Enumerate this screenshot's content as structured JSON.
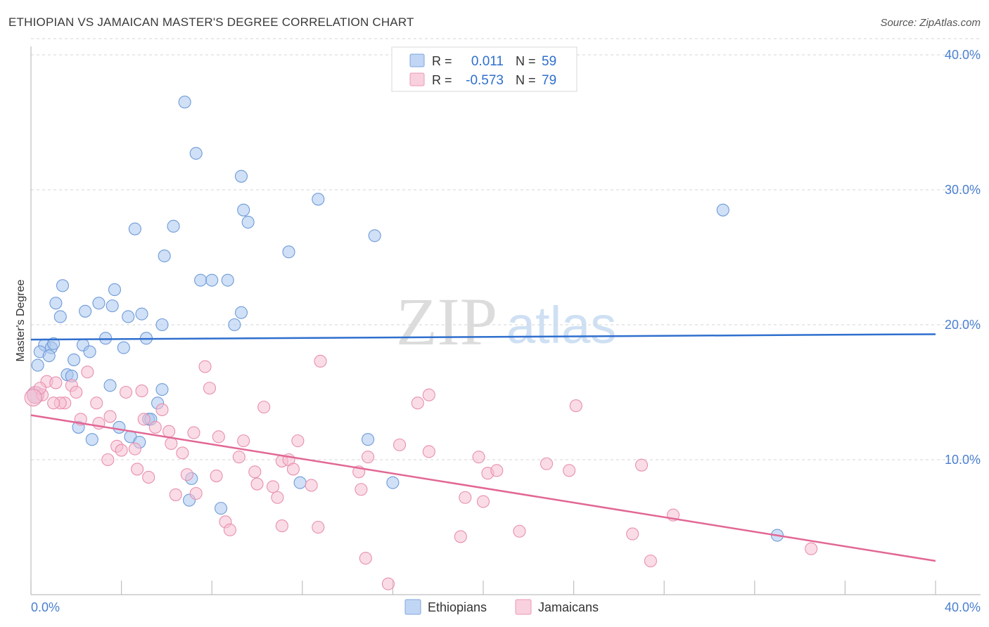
{
  "header": {
    "title": "ETHIOPIAN VS JAMAICAN MASTER'S DEGREE CORRELATION CHART",
    "source": "Source: ZipAtlas.com"
  },
  "watermark": {
    "zip": "ZIP",
    "atlas": "atlas"
  },
  "chart_data": {
    "type": "scatter",
    "title": "ETHIOPIAN VS JAMAICAN MASTER'S DEGREE CORRELATION CHART",
    "xlabel": "",
    "ylabel": "Master's Degree",
    "xlim": [
      0,
      40
    ],
    "ylim": [
      0,
      40
    ],
    "x_tick_labels": [
      "0.0%",
      "40.0%"
    ],
    "y_ticks": [
      10,
      20,
      30,
      40
    ],
    "y_tick_labels": [
      "10.0%",
      "20.0%",
      "30.0%",
      "40.0%"
    ],
    "legend_position": "top-center",
    "legend": [
      {
        "r_label": "R =",
        "r_value": "0.011",
        "n_label": "N =",
        "n_value": "59"
      },
      {
        "r_label": "R =",
        "r_value": "-0.573",
        "n_label": "N =",
        "n_value": "79"
      }
    ],
    "series": [
      {
        "name": "Ethiopians",
        "color": "#a9c6ef",
        "stroke": "#6f9bd9",
        "trend_color": "#2f6fce",
        "trend": {
          "x": [
            0,
            40
          ],
          "y": [
            18.9,
            19.3
          ]
        },
        "points": [
          [
            6.8,
            36.5
          ],
          [
            7.3,
            32.7
          ],
          [
            9.3,
            31.0
          ],
          [
            12.7,
            29.3
          ],
          [
            9.4,
            28.5
          ],
          [
            9.6,
            27.6
          ],
          [
            4.6,
            27.1
          ],
          [
            6.3,
            27.3
          ],
          [
            5.9,
            25.1
          ],
          [
            11.4,
            25.4
          ],
          [
            15.2,
            26.6
          ],
          [
            30.6,
            28.5
          ],
          [
            7.5,
            23.3
          ],
          [
            8.0,
            23.3
          ],
          [
            8.7,
            23.3
          ],
          [
            1.4,
            22.9
          ],
          [
            3.7,
            22.6
          ],
          [
            1.1,
            21.6
          ],
          [
            3.0,
            21.6
          ],
          [
            3.6,
            21.4
          ],
          [
            2.4,
            21.0
          ],
          [
            9.3,
            20.9
          ],
          [
            4.3,
            20.6
          ],
          [
            4.9,
            20.8
          ],
          [
            1.3,
            20.6
          ],
          [
            5.8,
            20.0
          ],
          [
            9.0,
            20.0
          ],
          [
            3.3,
            19.0
          ],
          [
            5.1,
            19.0
          ],
          [
            0.6,
            18.5
          ],
          [
            0.9,
            18.3
          ],
          [
            1.0,
            18.6
          ],
          [
            2.3,
            18.5
          ],
          [
            4.1,
            18.3
          ],
          [
            0.4,
            18.0
          ],
          [
            0.8,
            17.7
          ],
          [
            2.6,
            18.0
          ],
          [
            0.3,
            17.0
          ],
          [
            1.9,
            17.4
          ],
          [
            1.6,
            16.3
          ],
          [
            1.8,
            16.2
          ],
          [
            3.5,
            15.5
          ],
          [
            5.8,
            15.2
          ],
          [
            0.2,
            14.8
          ],
          [
            5.6,
            14.2
          ],
          [
            5.2,
            13.0
          ],
          [
            5.3,
            13.0
          ],
          [
            2.1,
            12.4
          ],
          [
            3.9,
            12.4
          ],
          [
            4.4,
            11.7
          ],
          [
            2.7,
            11.5
          ],
          [
            4.8,
            11.3
          ],
          [
            14.9,
            11.5
          ],
          [
            11.9,
            8.3
          ],
          [
            16.0,
            8.3
          ],
          [
            7.1,
            8.6
          ],
          [
            7.0,
            7.0
          ],
          [
            8.4,
            6.4
          ],
          [
            33.0,
            4.4
          ]
        ]
      },
      {
        "name": "Jamaicans",
        "color": "#f6bfd1",
        "stroke": "#e88fae",
        "trend_color": "#e26795",
        "trend": {
          "x": [
            0,
            40
          ],
          "y": [
            13.3,
            2.5
          ]
        },
        "points": [
          [
            0.2,
            14.8
          ],
          [
            0.5,
            14.8
          ],
          [
            0.7,
            15.8
          ],
          [
            1.5,
            14.2
          ],
          [
            1.8,
            15.5
          ],
          [
            2.5,
            16.5
          ],
          [
            2.0,
            15.0
          ],
          [
            1.3,
            14.2
          ],
          [
            1.0,
            14.2
          ],
          [
            2.9,
            14.2
          ],
          [
            4.2,
            15.0
          ],
          [
            5.8,
            13.7
          ],
          [
            7.7,
            16.9
          ],
          [
            7.9,
            15.3
          ],
          [
            12.8,
            17.3
          ],
          [
            17.6,
            14.8
          ],
          [
            17.1,
            14.2
          ],
          [
            24.1,
            14.0
          ],
          [
            10.3,
            13.9
          ],
          [
            2.2,
            13.0
          ],
          [
            3.5,
            13.2
          ],
          [
            3.0,
            12.7
          ],
          [
            5.0,
            13.0
          ],
          [
            5.5,
            12.4
          ],
          [
            6.1,
            12.1
          ],
          [
            7.2,
            12.0
          ],
          [
            8.3,
            11.7
          ],
          [
            9.4,
            11.4
          ],
          [
            11.8,
            11.4
          ],
          [
            3.8,
            11.0
          ],
          [
            4.0,
            10.7
          ],
          [
            4.6,
            10.8
          ],
          [
            6.2,
            11.2
          ],
          [
            6.7,
            10.5
          ],
          [
            16.3,
            11.1
          ],
          [
            17.6,
            10.6
          ],
          [
            3.4,
            10.0
          ],
          [
            9.2,
            10.2
          ],
          [
            11.1,
            9.9
          ],
          [
            11.4,
            10.0
          ],
          [
            14.9,
            10.2
          ],
          [
            19.8,
            10.2
          ],
          [
            22.8,
            9.7
          ],
          [
            27.0,
            9.6
          ],
          [
            4.7,
            9.3
          ],
          [
            9.9,
            9.1
          ],
          [
            11.6,
            9.3
          ],
          [
            14.5,
            9.1
          ],
          [
            20.2,
            9.0
          ],
          [
            20.6,
            9.2
          ],
          [
            23.8,
            9.2
          ],
          [
            5.2,
            8.7
          ],
          [
            6.9,
            8.9
          ],
          [
            8.2,
            8.8
          ],
          [
            10.0,
            8.2
          ],
          [
            10.7,
            8.0
          ],
          [
            12.4,
            8.1
          ],
          [
            14.6,
            7.8
          ],
          [
            6.4,
            7.4
          ],
          [
            7.3,
            7.5
          ],
          [
            10.9,
            7.2
          ],
          [
            19.2,
            7.2
          ],
          [
            20.0,
            6.9
          ],
          [
            28.4,
            5.9
          ],
          [
            8.6,
            5.4
          ],
          [
            8.8,
            4.8
          ],
          [
            11.1,
            5.1
          ],
          [
            12.7,
            5.0
          ],
          [
            21.6,
            4.7
          ],
          [
            19.0,
            4.3
          ],
          [
            26.6,
            4.5
          ],
          [
            34.5,
            3.4
          ],
          [
            14.8,
            2.7
          ],
          [
            27.4,
            2.5
          ],
          [
            15.8,
            0.8
          ],
          [
            4.9,
            15.1
          ],
          [
            1.1,
            15.7
          ],
          [
            0.4,
            15.3
          ],
          [
            0.1,
            14.6
          ]
        ]
      }
    ]
  }
}
